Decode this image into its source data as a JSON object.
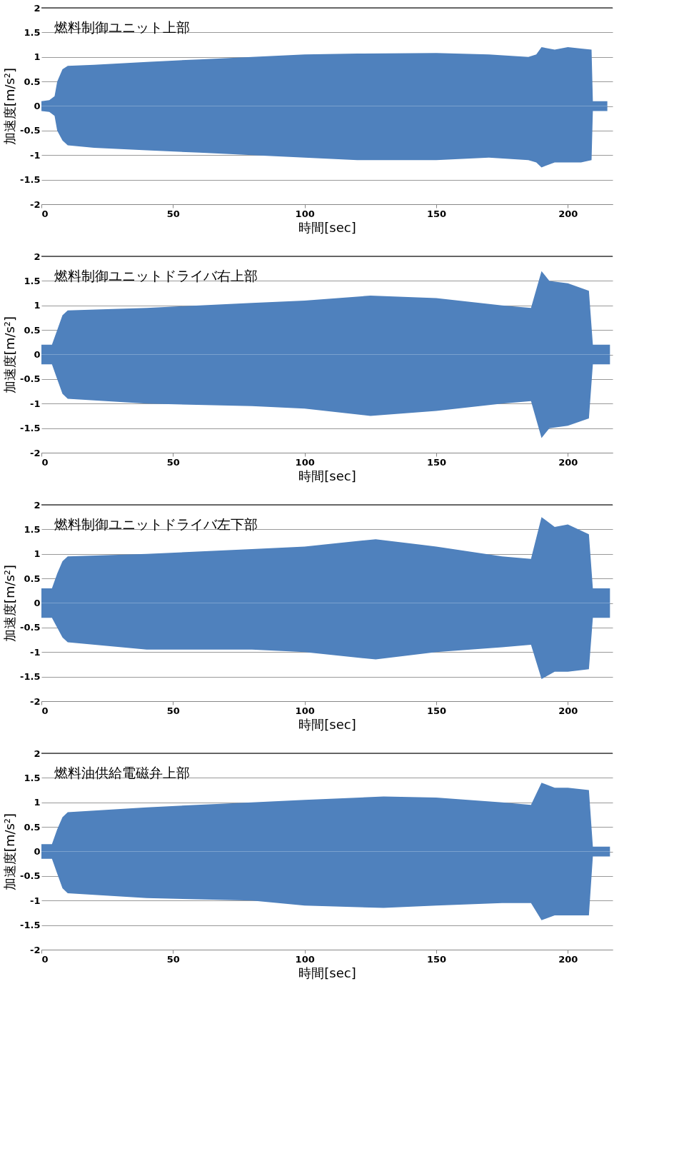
{
  "chart_data": [
    {
      "type": "area",
      "title": "燃料制御ユニット上部",
      "xlabel": "時間[sec]",
      "ylabel": "加速度[m/s²]",
      "xlim": [
        0,
        217
      ],
      "xticks": [
        0,
        50,
        100,
        150,
        200
      ],
      "ylim": [
        -2,
        2
      ],
      "yticks": [
        -2,
        -1.5,
        -1,
        -0.5,
        0,
        0.5,
        1,
        1.5,
        2
      ],
      "grid": "y",
      "x": [
        0,
        3,
        5,
        6,
        8,
        10,
        20,
        40,
        60,
        80,
        100,
        120,
        150,
        170,
        185,
        188,
        190,
        195,
        200,
        205,
        209,
        209.5,
        215
      ],
      "series": [
        {
          "color": "#4f81bd",
          "values": [
            0.1,
            0.12,
            0.2,
            0.5,
            0.75,
            0.82,
            0.84,
            0.9,
            0.95,
            1.0,
            1.05,
            1.07,
            1.08,
            1.05,
            1.0,
            1.05,
            1.2,
            1.15,
            1.2,
            1.17,
            1.15,
            0.1,
            0.1
          ]
        },
        {
          "color": "#4f81bd",
          "values": [
            -0.1,
            -0.12,
            -0.2,
            -0.5,
            -0.7,
            -0.8,
            -0.85,
            -0.9,
            -0.95,
            -1.0,
            -1.05,
            -1.1,
            -1.1,
            -1.05,
            -1.1,
            -1.15,
            -1.25,
            -1.15,
            -1.15,
            -1.15,
            -1.1,
            -0.1,
            -0.1
          ]
        }
      ]
    },
    {
      "type": "area",
      "title": "燃料制御ユニットドライバ右上部",
      "xlabel": "時間[sec]",
      "ylabel": "加速度[m/s²]",
      "xlim": [
        0,
        217
      ],
      "xticks": [
        0,
        50,
        100,
        150,
        200
      ],
      "ylim": [
        -2,
        2
      ],
      "yticks": [
        -2,
        -1.5,
        -1,
        -0.5,
        0,
        0.5,
        1,
        1.5,
        2
      ],
      "grid": "y",
      "x": [
        0,
        4,
        6,
        8,
        10,
        40,
        80,
        100,
        125,
        150,
        175,
        186,
        190,
        193,
        200,
        208,
        209.5,
        216
      ],
      "series": [
        {
          "color": "#4f81bd",
          "values": [
            0.2,
            0.2,
            0.5,
            0.8,
            0.9,
            0.95,
            1.05,
            1.1,
            1.2,
            1.15,
            1.0,
            0.95,
            1.7,
            1.5,
            1.45,
            1.3,
            0.2,
            0.2
          ]
        },
        {
          "color": "#4f81bd",
          "values": [
            -0.2,
            -0.2,
            -0.5,
            -0.8,
            -0.9,
            -1.0,
            -1.05,
            -1.1,
            -1.25,
            -1.15,
            -1.0,
            -0.95,
            -1.7,
            -1.5,
            -1.45,
            -1.3,
            -0.2,
            -0.2
          ]
        }
      ]
    },
    {
      "type": "area",
      "title": "燃料制御ユニットドライバ左下部",
      "xlabel": "時間[sec]",
      "ylabel": "加速度[m/s²]",
      "xlim": [
        0,
        217
      ],
      "xticks": [
        0,
        50,
        100,
        150,
        200
      ],
      "ylim": [
        -2,
        2
      ],
      "yticks": [
        -2,
        -1.5,
        -1,
        -0.5,
        0,
        0.5,
        1,
        1.5,
        2
      ],
      "grid": "y",
      "x": [
        0,
        4,
        6,
        8,
        10,
        40,
        80,
        100,
        127,
        150,
        175,
        186,
        190,
        195,
        200,
        208,
        209.5,
        216
      ],
      "series": [
        {
          "color": "#4f81bd",
          "values": [
            0.3,
            0.3,
            0.6,
            0.85,
            0.95,
            1.0,
            1.1,
            1.15,
            1.3,
            1.15,
            0.95,
            0.9,
            1.75,
            1.55,
            1.6,
            1.4,
            0.3,
            0.3
          ]
        },
        {
          "color": "#4f81bd",
          "values": [
            -0.3,
            -0.3,
            -0.5,
            -0.7,
            -0.8,
            -0.95,
            -0.95,
            -1.0,
            -1.15,
            -1.0,
            -0.9,
            -0.85,
            -1.55,
            -1.4,
            -1.4,
            -1.35,
            -0.3,
            -0.3
          ]
        }
      ]
    },
    {
      "type": "area",
      "title": "燃料油供給電磁弁上部",
      "xlabel": "時間[sec]",
      "ylabel": "加速度[m/s²]",
      "xlim": [
        0,
        217
      ],
      "xticks": [
        0,
        50,
        100,
        150,
        200
      ],
      "ylim": [
        -2,
        2
      ],
      "yticks": [
        -2,
        -1.5,
        -1,
        -0.5,
        0,
        0.5,
        1,
        1.5,
        2
      ],
      "grid": "y",
      "x": [
        0,
        4,
        6,
        8,
        10,
        40,
        80,
        100,
        130,
        150,
        175,
        186,
        190,
        195,
        200,
        208,
        209.5,
        216
      ],
      "series": [
        {
          "color": "#4f81bd",
          "values": [
            0.15,
            0.15,
            0.45,
            0.7,
            0.8,
            0.9,
            1.0,
            1.05,
            1.12,
            1.1,
            1.0,
            0.95,
            1.4,
            1.3,
            1.3,
            1.25,
            0.1,
            0.1
          ]
        },
        {
          "color": "#4f81bd",
          "values": [
            -0.15,
            -0.15,
            -0.45,
            -0.75,
            -0.85,
            -0.95,
            -1.0,
            -1.1,
            -1.15,
            -1.1,
            -1.05,
            -1.05,
            -1.4,
            -1.3,
            -1.3,
            -1.3,
            -0.1,
            -0.1
          ]
        }
      ]
    }
  ]
}
